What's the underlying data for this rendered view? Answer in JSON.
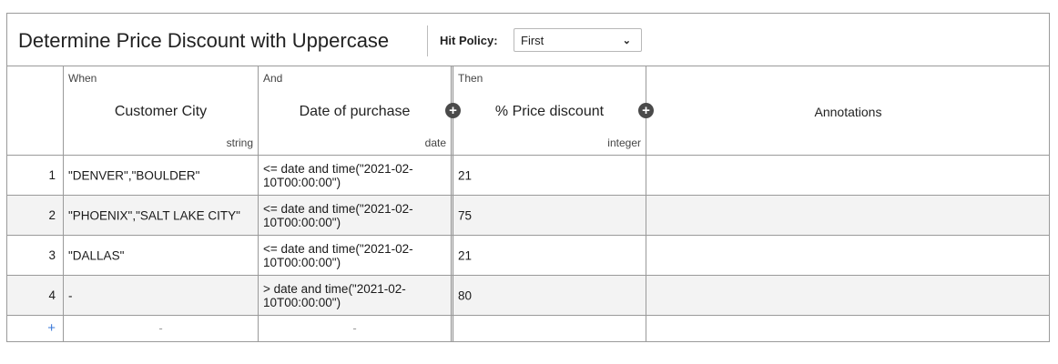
{
  "table": {
    "title": "Determine Price Discount with Uppercase",
    "hit_policy_label": "Hit Policy:",
    "hit_policy_value": "First"
  },
  "columns": {
    "city": {
      "kind": "When",
      "name": "Customer City",
      "type": "string"
    },
    "date": {
      "kind": "And",
      "name": "Date of purchase",
      "type": "date"
    },
    "discount": {
      "kind": "Then",
      "name": "% Price discount",
      "type": "integer"
    },
    "annotations": {
      "name": "Annotations"
    }
  },
  "rows": [
    {
      "num": "1",
      "city": "\"DENVER\",\"BOULDER\"",
      "date": "<= date and time(\"2021-02-10T00:00:00\")",
      "discount": "21",
      "annotation": ""
    },
    {
      "num": "2",
      "city": "\"PHOENIX\",\"SALT LAKE CITY\"",
      "date": "<= date and time(\"2021-02-10T00:00:00\")",
      "discount": "75",
      "annotation": ""
    },
    {
      "num": "3",
      "city": "\"DALLAS\"",
      "date": "<= date and time(\"2021-02-10T00:00:00\")",
      "discount": "21",
      "annotation": ""
    },
    {
      "num": "4",
      "city": "-",
      "date": "> date and time(\"2021-02-10T00:00:00\")",
      "discount": "80",
      "annotation": ""
    }
  ],
  "add_row": {
    "plus": "+",
    "city_placeholder": "-",
    "date_placeholder": "-"
  },
  "icons": {
    "add_column": "+",
    "select_chevron": "⌄"
  }
}
